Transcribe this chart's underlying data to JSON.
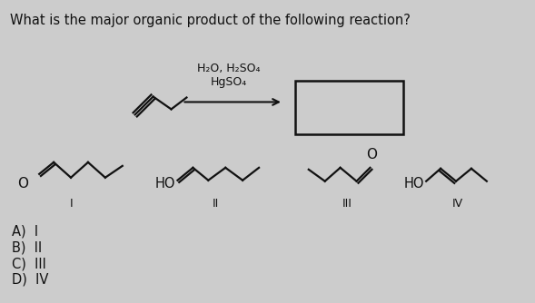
{
  "title": "What is the major organic product of the following reaction?",
  "reagents_line1": "H₂O, H₂SO₄",
  "reagents_line2": "HgSO₄",
  "choices": [
    "A)  I",
    "B)  II",
    "C)  III",
    "D)  IV"
  ],
  "background_color": "#cccccc",
  "text_color": "#111111",
  "label_I": "I",
  "label_II": "II",
  "label_III": "III",
  "label_IV": "IV"
}
